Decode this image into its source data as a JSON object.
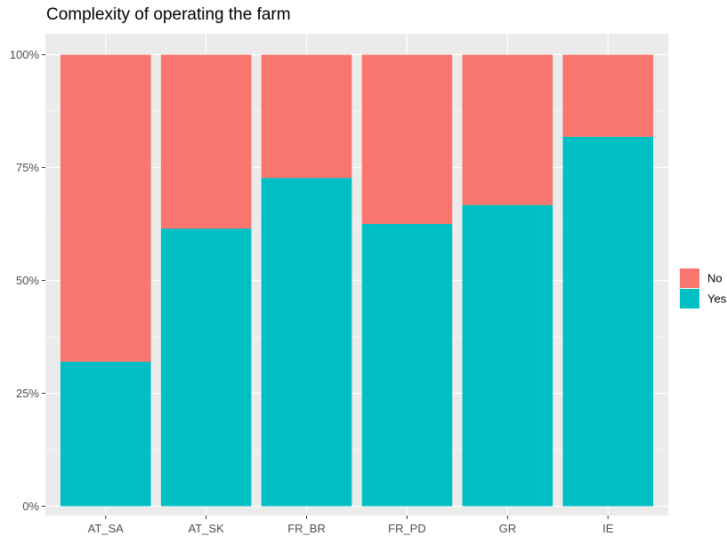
{
  "chart_data": {
    "type": "bar",
    "stacked": true,
    "title": "Complexity of operating the farm",
    "xlabel": "",
    "ylabel": "",
    "categories": [
      "AT_SA",
      "AT_SK",
      "FR_BR",
      "FR_PD",
      "GR",
      "IE"
    ],
    "series": [
      {
        "name": "Yes",
        "values": [
          0.32,
          0.615,
          0.727,
          0.625,
          0.667,
          0.818
        ],
        "color": "#00BFC4"
      },
      {
        "name": "No",
        "values": [
          0.68,
          0.385,
          0.273,
          0.375,
          0.333,
          0.182
        ],
        "color": "#F8766D"
      }
    ],
    "ylim": [
      0,
      1
    ],
    "yticks": [
      0,
      0.25,
      0.5,
      0.75,
      1
    ],
    "ytick_labels": [
      "0%",
      "25%",
      "50%",
      "75%",
      "100%"
    ],
    "legend": {
      "position": "right",
      "entries": [
        "No",
        "Yes"
      ]
    },
    "grid": true,
    "panel_background": "#EBEBEB"
  }
}
